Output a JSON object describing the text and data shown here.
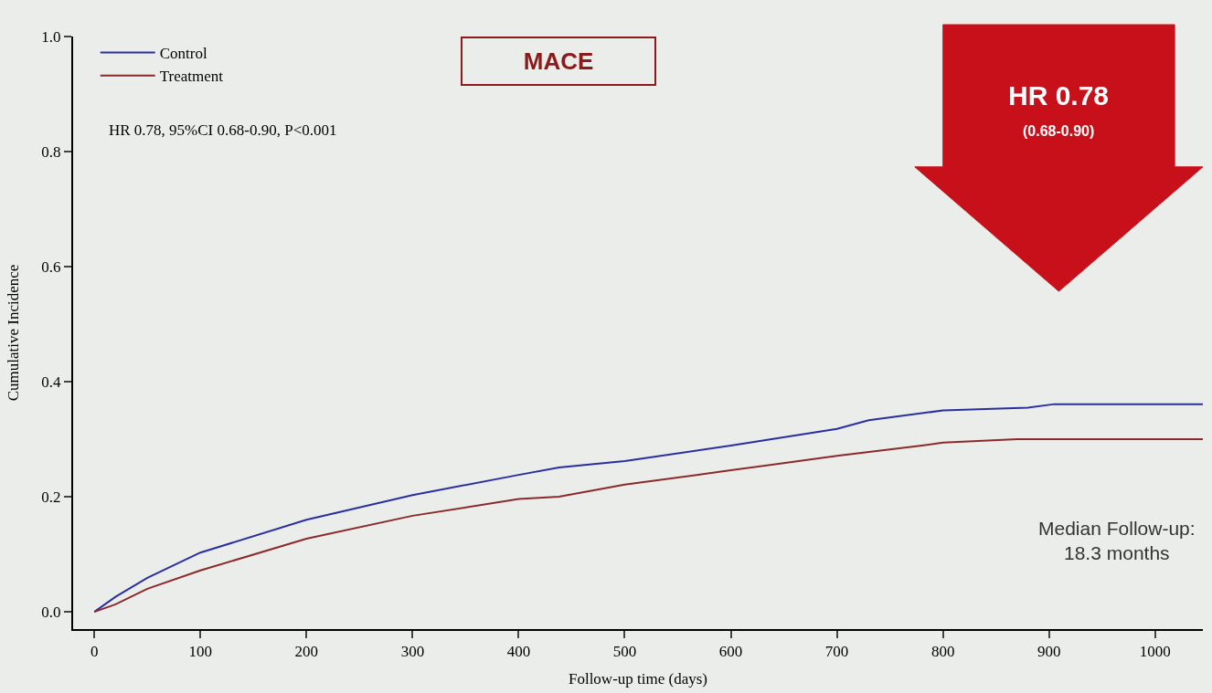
{
  "chart_data": {
    "type": "line",
    "title": "MACE",
    "xlabel": "Follow-up time (days)",
    "ylabel": "Cumulative Incidence",
    "annotations": [
      "HR 0.78, 95%CI 0.68-0.90, P<0.001",
      "HR 0.78",
      "(0.68-0.90)",
      "Median Follow-up:\n18.3 months"
    ],
    "series": [
      {
        "name": "Control",
        "color": "#2b2f9e",
        "x": [
          0,
          20,
          50,
          100,
          200,
          300,
          400,
          438,
          500,
          600,
          700,
          730,
          800,
          880,
          905,
          1045
        ],
        "values": [
          0,
          0.026,
          0.059,
          0.103,
          0.16,
          0.203,
          0.238,
          0.251,
          0.262,
          0.289,
          0.318,
          0.333,
          0.35,
          0.355,
          0.361,
          0.361
        ]
      },
      {
        "name": "Treatment",
        "color": "#8b2a2a",
        "x": [
          0,
          20,
          50,
          100,
          200,
          300,
          400,
          438,
          500,
          600,
          700,
          780,
          800,
          870,
          1045
        ],
        "values": [
          0,
          0.013,
          0.04,
          0.072,
          0.127,
          0.167,
          0.196,
          0.2,
          0.221,
          0.246,
          0.271,
          0.289,
          0.294,
          0.3,
          0.3
        ]
      }
    ],
    "xlim": [
      -20,
      1045
    ],
    "xticks": [
      0,
      100,
      200,
      300,
      400,
      500,
      600,
      700,
      800,
      900,
      1000
    ],
    "ylim": [
      -0.03,
      1.0
    ],
    "yticks": [
      {
        "value": 0,
        "label": "0.0"
      },
      0.2,
      0.4,
      0.6,
      0.8,
      {
        "value": 1,
        "label": "1.0"
      }
    ],
    "legend": "top left",
    "grid": false,
    "line_style": "solid",
    "marker": "none"
  }
}
